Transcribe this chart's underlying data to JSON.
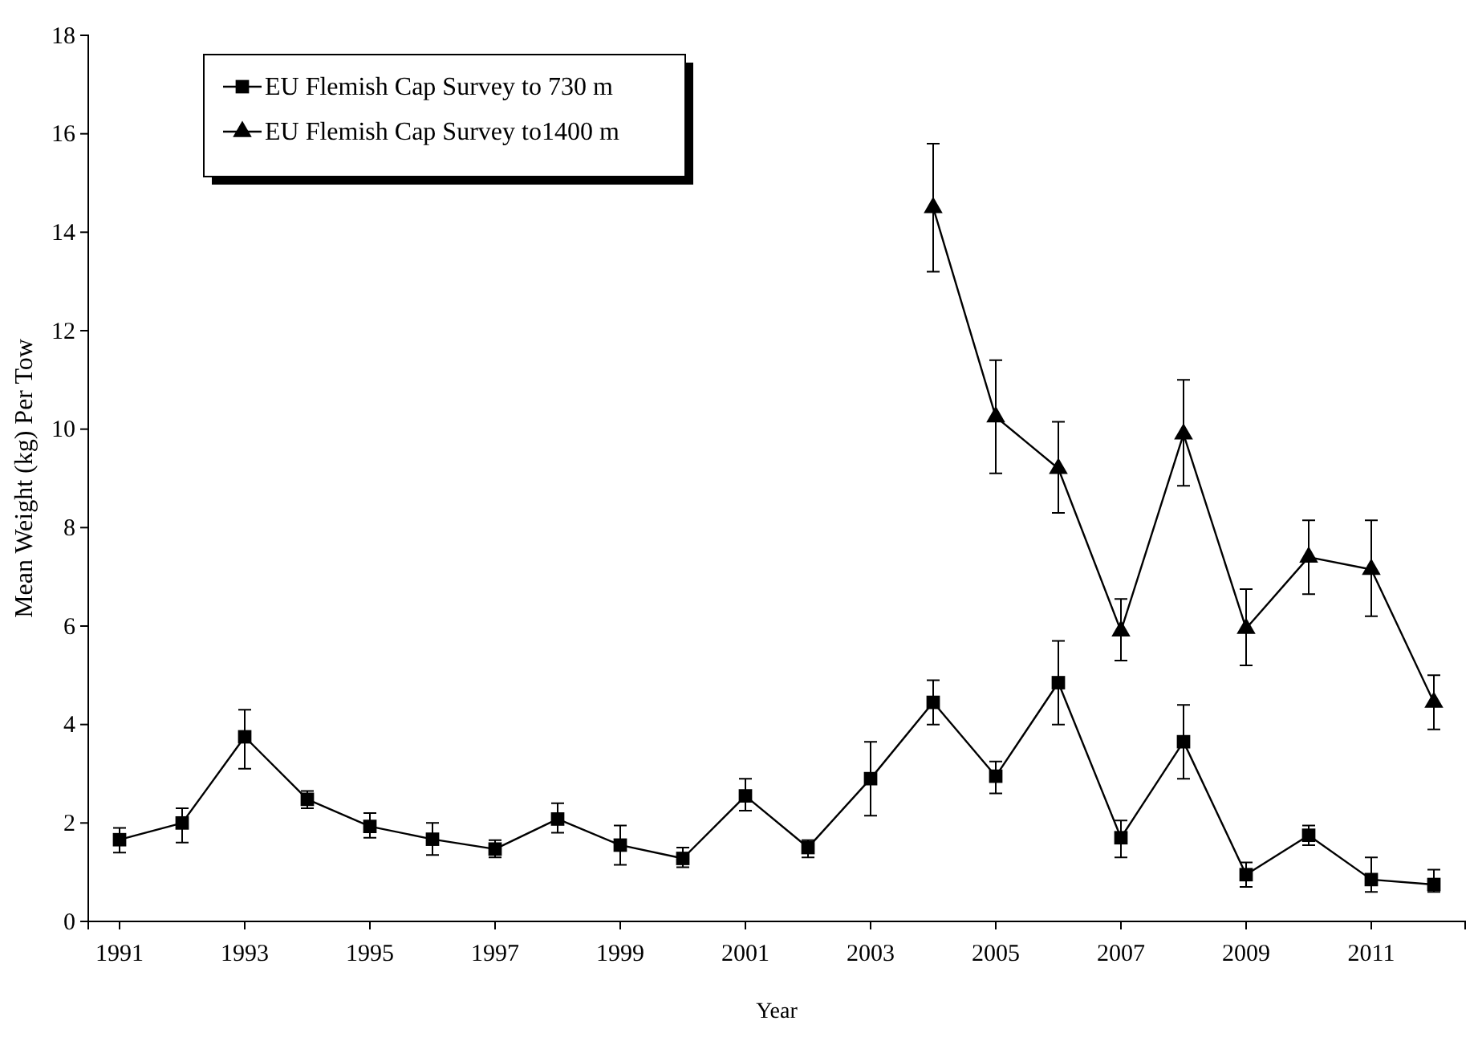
{
  "chart_data": {
    "type": "line",
    "xlabel": "Year",
    "ylabel": "Mean Weight (kg) Per Tow",
    "xlim": [
      1990.5,
      2012.5
    ],
    "xticks": [
      1991,
      1993,
      1995,
      1997,
      1999,
      2001,
      2003,
      2005,
      2007,
      2009,
      2011
    ],
    "ylim": [
      0,
      18
    ],
    "yticks": [
      0,
      2,
      4,
      6,
      8,
      10,
      12,
      14,
      16,
      18
    ],
    "grid": false,
    "legend": "top left",
    "line_style": "solid",
    "series": [
      {
        "name": "EU Flemish Cap Survey to 730 m",
        "color": "#000000",
        "marker": "square",
        "x": [
          1991,
          1992,
          1993,
          1994,
          1995,
          1996,
          1997,
          1998,
          1999,
          2000,
          2001,
          2002,
          2003,
          2004,
          2005,
          2006,
          2007,
          2008,
          2009,
          2010,
          2011,
          2012
        ],
        "values": [
          1.66,
          2.0,
          3.75,
          2.48,
          1.93,
          1.67,
          1.47,
          2.08,
          1.55,
          1.28,
          2.55,
          1.5,
          2.9,
          4.45,
          2.95,
          4.85,
          1.7,
          3.65,
          0.95,
          1.75,
          0.85,
          0.75
        ],
        "errors": [
          [
            1.4,
            1.9
          ],
          [
            1.6,
            2.3
          ],
          [
            3.1,
            4.3
          ],
          [
            2.3,
            2.65
          ],
          [
            1.7,
            2.2
          ],
          [
            1.35,
            2.0
          ],
          [
            1.3,
            1.65
          ],
          [
            1.8,
            2.4
          ],
          [
            1.15,
            1.95
          ],
          [
            1.1,
            1.5
          ],
          [
            2.25,
            2.9
          ],
          [
            1.3,
            1.65
          ],
          [
            2.15,
            3.65
          ],
          [
            4.0,
            4.9
          ],
          [
            2.6,
            3.25
          ],
          [
            4.0,
            5.7
          ],
          [
            1.3,
            2.05
          ],
          [
            2.9,
            4.4
          ],
          [
            0.7,
            1.2
          ],
          [
            1.55,
            1.95
          ],
          [
            0.6,
            1.3
          ],
          [
            0.6,
            1.05
          ]
        ]
      },
      {
        "name": "EU Flemish Cap Survey to1400 m",
        "color": "#000000",
        "marker": "triangle",
        "x": [
          2004,
          2005,
          2006,
          2007,
          2008,
          2009,
          2010,
          2011,
          2012
        ],
        "values": [
          14.5,
          10.25,
          9.2,
          5.9,
          9.9,
          5.95,
          7.4,
          7.15,
          4.45
        ],
        "errors": [
          [
            13.2,
            15.8
          ],
          [
            9.1,
            11.4
          ],
          [
            8.3,
            10.15
          ],
          [
            5.3,
            6.55
          ],
          [
            8.85,
            11.0
          ],
          [
            5.2,
            6.75
          ],
          [
            6.65,
            8.15
          ],
          [
            6.2,
            8.15
          ],
          [
            3.9,
            5.0
          ]
        ]
      }
    ]
  }
}
